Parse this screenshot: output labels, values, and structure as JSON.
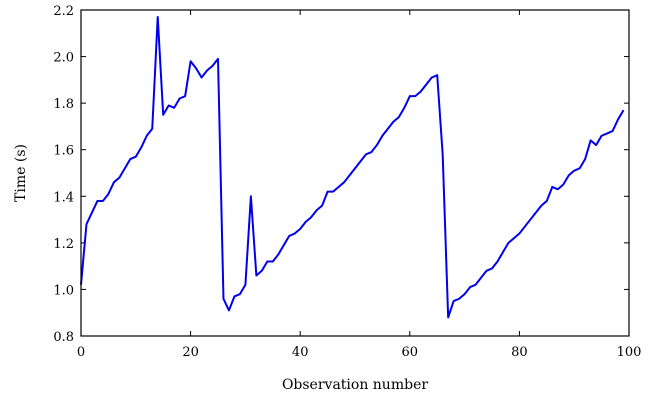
{
  "chart_data": {
    "type": "line",
    "title": "",
    "xlabel": "Observation number",
    "ylabel": "Time (s)",
    "xlim": [
      0,
      100
    ],
    "ylim": [
      0.8,
      2.2
    ],
    "xticks": [
      "0",
      "20",
      "40",
      "60",
      "80",
      "100"
    ],
    "yticks": [
      "0.8",
      "1.0",
      "1.2",
      "1.4",
      "1.6",
      "1.8",
      "2.0",
      "2.2"
    ],
    "grid": false,
    "legend": "none",
    "line_color": "#0000ee",
    "series": [
      {
        "x": [
          0,
          1,
          2,
          3,
          4,
          5,
          6,
          7,
          8,
          9,
          10,
          11,
          12,
          13,
          14,
          15,
          16,
          17,
          18,
          19,
          20,
          21,
          22,
          23,
          24,
          25,
          26,
          27,
          28,
          29,
          30,
          31,
          32,
          33,
          34,
          35,
          36,
          37,
          38,
          39,
          40,
          41,
          42,
          43,
          44,
          45,
          46,
          47,
          48,
          49,
          50,
          51,
          52,
          53,
          54,
          55,
          56,
          57,
          58,
          59,
          60,
          61,
          62,
          63,
          64,
          65,
          66,
          67,
          68,
          69,
          70,
          71,
          72,
          73,
          74,
          75,
          76,
          77,
          78,
          79,
          80,
          81,
          82,
          83,
          84,
          85,
          86,
          87,
          88,
          89,
          90,
          91,
          92,
          93,
          94,
          95,
          96,
          97,
          98,
          99
        ],
        "values": [
          1.02,
          1.28,
          1.33,
          1.38,
          1.38,
          1.41,
          1.46,
          1.48,
          1.52,
          1.56,
          1.57,
          1.61,
          1.66,
          1.69,
          2.17,
          1.75,
          1.79,
          1.78,
          1.82,
          1.83,
          1.98,
          1.95,
          1.91,
          1.94,
          1.96,
          1.99,
          0.96,
          0.91,
          0.97,
          0.98,
          1.02,
          1.4,
          1.06,
          1.08,
          1.12,
          1.12,
          1.15,
          1.19,
          1.23,
          1.24,
          1.26,
          1.29,
          1.31,
          1.34,
          1.36,
          1.42,
          1.42,
          1.44,
          1.46,
          1.49,
          1.52,
          1.55,
          1.58,
          1.59,
          1.62,
          1.66,
          1.69,
          1.72,
          1.74,
          1.78,
          1.83,
          1.83,
          1.85,
          1.88,
          1.91,
          1.92,
          1.58,
          0.88,
          0.95,
          0.96,
          0.98,
          1.01,
          1.02,
          1.05,
          1.08,
          1.09,
          1.12,
          1.16,
          1.2,
          1.22,
          1.24,
          1.27,
          1.3,
          1.33,
          1.36,
          1.38,
          1.44,
          1.43,
          1.45,
          1.49,
          1.51,
          1.52,
          1.56,
          1.64,
          1.62,
          1.66,
          1.67,
          1.68,
          1.73,
          1.77
        ]
      }
    ]
  }
}
